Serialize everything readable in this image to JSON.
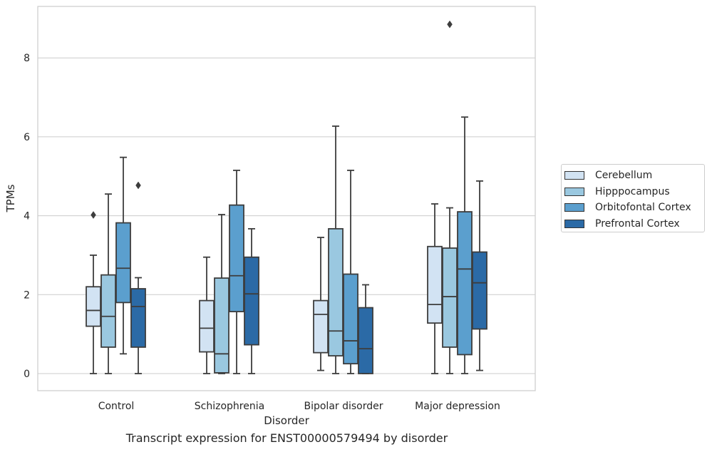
{
  "chart_data": {
    "type": "box",
    "caption": "Transcript expression for ENST00000579494 by disorder",
    "xlabel": "Disorder",
    "ylabel": "TPMs",
    "ylim": [
      -0.42,
      9.3
    ],
    "yticks": [
      0,
      2,
      4,
      6,
      8
    ],
    "grid": "horizontal",
    "legend_position": "right",
    "categories": [
      "Control",
      "Schizophrenia",
      "Bipolar disorder",
      "Major depression"
    ],
    "series": [
      {
        "name": "Cerebellum",
        "color": "#d2e3f3",
        "boxes": [
          {
            "whislo": 0.0,
            "q1": 1.2,
            "med": 1.6,
            "q3": 2.2,
            "whishi": 3.0,
            "fliers": [
              4.02
            ]
          },
          {
            "whislo": 0.0,
            "q1": 0.55,
            "med": 1.15,
            "q3": 1.85,
            "whishi": 2.95,
            "fliers": []
          },
          {
            "whislo": 0.08,
            "q1": 0.53,
            "med": 1.5,
            "q3": 1.85,
            "whishi": 3.45,
            "fliers": []
          },
          {
            "whislo": 0.0,
            "q1": 1.28,
            "med": 1.75,
            "q3": 3.22,
            "whishi": 4.3,
            "fliers": []
          }
        ]
      },
      {
        "name": "Hipppocampus",
        "color": "#9ac8e0",
        "boxes": [
          {
            "whislo": 0.0,
            "q1": 0.67,
            "med": 1.45,
            "q3": 2.5,
            "whishi": 4.55,
            "fliers": []
          },
          {
            "whislo": 0.0,
            "q1": 0.02,
            "med": 0.5,
            "q3": 2.42,
            "whishi": 4.03,
            "fliers": []
          },
          {
            "whislo": 0.0,
            "q1": 0.45,
            "med": 1.08,
            "q3": 3.67,
            "whishi": 6.27,
            "fliers": []
          },
          {
            "whislo": 0.0,
            "q1": 0.67,
            "med": 1.95,
            "q3": 3.18,
            "whishi": 4.2,
            "fliers": [
              8.85
            ]
          }
        ]
      },
      {
        "name": "Orbitofontal Cortex",
        "color": "#5b9fce",
        "boxes": [
          {
            "whislo": 0.5,
            "q1": 1.8,
            "med": 2.67,
            "q3": 3.82,
            "whishi": 5.48,
            "fliers": []
          },
          {
            "whislo": 0.0,
            "q1": 1.57,
            "med": 2.48,
            "q3": 4.27,
            "whishi": 5.15,
            "fliers": []
          },
          {
            "whislo": 0.0,
            "q1": 0.25,
            "med": 0.83,
            "q3": 2.52,
            "whishi": 5.15,
            "fliers": []
          },
          {
            "whislo": 0.0,
            "q1": 0.48,
            "med": 2.65,
            "q3": 4.1,
            "whishi": 6.5,
            "fliers": []
          }
        ]
      },
      {
        "name": "Prefrontal Cortex",
        "color": "#2b6aa6",
        "boxes": [
          {
            "whislo": 0.0,
            "q1": 0.67,
            "med": 1.7,
            "q3": 2.15,
            "whishi": 2.43,
            "fliers": [
              4.77
            ]
          },
          {
            "whislo": 0.0,
            "q1": 0.73,
            "med": 2.02,
            "q3": 2.95,
            "whishi": 3.67,
            "fliers": []
          },
          {
            "whislo": 0.0,
            "q1": 0.0,
            "med": 0.63,
            "q3": 1.67,
            "whishi": 2.25,
            "fliers": []
          },
          {
            "whislo": 0.08,
            "q1": 1.13,
            "med": 2.3,
            "q3": 3.08,
            "whishi": 4.88,
            "fliers": []
          }
        ]
      }
    ]
  }
}
